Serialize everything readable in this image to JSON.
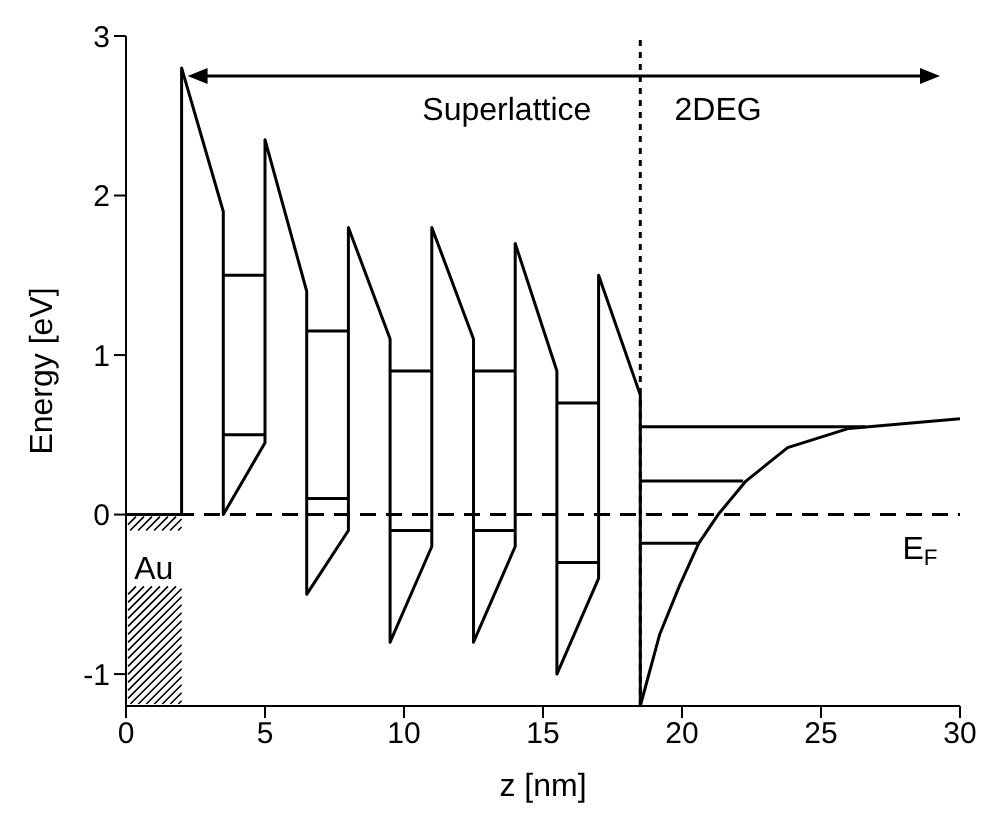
{
  "chart_data": {
    "type": "line",
    "xlabel": "z [nm]",
    "ylabel": "Energy [eV]",
    "xlim": [
      0,
      30
    ],
    "xticks": [
      0,
      5,
      10,
      15,
      20,
      25,
      30
    ],
    "ylim": [
      -1.2,
      3
    ],
    "yticks": [
      -1,
      0,
      1,
      2,
      3
    ],
    "marker": "none",
    "line_style": "solid",
    "series": [
      {
        "color": "#000000",
        "x": [
          0,
          2,
          2,
          3.5,
          3.5,
          5,
          5,
          6.5,
          6.5,
          8,
          8,
          9.5,
          9.5,
          11,
          11,
          12.5,
          12.5,
          14,
          14,
          15.5,
          15.5,
          17,
          17,
          18.5,
          18.5
        ],
        "values": [
          0,
          0,
          2.8,
          1.9,
          0,
          0.45,
          2.35,
          1.4,
          -0.5,
          -0.1,
          1.8,
          1.1,
          -0.8,
          -0.2,
          1.8,
          1.1,
          -0.8,
          -0.2,
          1.7,
          0.9,
          -1,
          -0.4,
          1.5,
          0.75,
          -1.2
        ]
      },
      {
        "color": "#000000",
        "x": [
          18.5,
          19.2,
          19.9,
          20.6,
          21.3,
          22.3,
          23.8,
          26,
          30
        ],
        "values": [
          -1.2,
          -0.75,
          -0.45,
          -0.18,
          0,
          0.21,
          0.42,
          0.54,
          0.6
        ]
      },
      {
        "color": "#000000",
        "x": [
          3.5,
          5
        ],
        "values": [
          1.5,
          1.5
        ]
      },
      {
        "color": "#000000",
        "x": [
          3.5,
          5
        ],
        "values": [
          0.5,
          0.5
        ]
      },
      {
        "color": "#000000",
        "x": [
          6.5,
          8
        ],
        "values": [
          1.15,
          1.15
        ]
      },
      {
        "color": "#000000",
        "x": [
          6.5,
          8
        ],
        "values": [
          0.1,
          0.1
        ]
      },
      {
        "color": "#000000",
        "x": [
          9.5,
          11
        ],
        "values": [
          0.9,
          0.9
        ]
      },
      {
        "color": "#000000",
        "x": [
          9.5,
          11
        ],
        "values": [
          -0.1,
          -0.1
        ]
      },
      {
        "color": "#000000",
        "x": [
          12.5,
          14
        ],
        "values": [
          0.9,
          0.9
        ]
      },
      {
        "color": "#000000",
        "x": [
          12.5,
          14
        ],
        "values": [
          -0.1,
          -0.1
        ]
      },
      {
        "color": "#000000",
        "x": [
          15.5,
          17
        ],
        "values": [
          0.7,
          0.7
        ]
      },
      {
        "color": "#000000",
        "x": [
          15.5,
          17
        ],
        "values": [
          -0.3,
          -0.3
        ]
      },
      {
        "color": "#000000",
        "x": [
          18.5,
          26.6
        ],
        "values": [
          0.55,
          0.55
        ]
      },
      {
        "color": "#000000",
        "x": [
          18.5,
          22.2
        ],
        "values": [
          0.21,
          0.21
        ]
      },
      {
        "color": "#000000",
        "x": [
          18.5,
          20.6
        ],
        "values": [
          -0.18,
          -0.18
        ]
      }
    ],
    "ref_lines": [
      {
        "axis": "y",
        "value": 0,
        "label": "E$_{F}$",
        "line_style": "dashed",
        "color": "#000000"
      },
      {
        "axis": "x",
        "value": 18.5,
        "label": null,
        "line_style": "dotted",
        "color": "#000000"
      }
    ],
    "annotations": [
      "Superlattice",
      "2DEG",
      "Au"
    ]
  }
}
